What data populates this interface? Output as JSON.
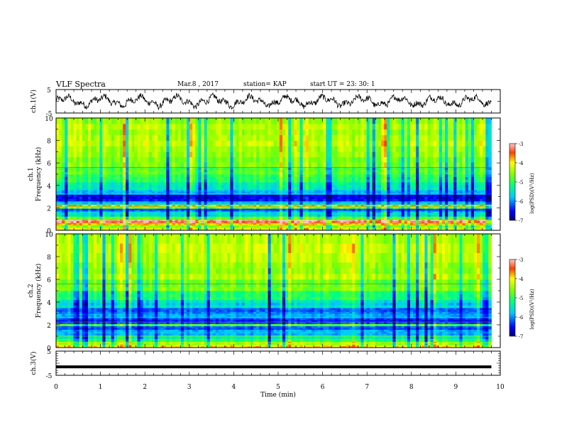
{
  "header": {
    "title": "VLF Spectra",
    "date": "Mar.8 , 2017",
    "station": "station= KAP",
    "start": "start UT =  23: 30: 1"
  },
  "chart_data": [
    {
      "type": "line",
      "ylabel": "ch.1(V)",
      "ylim": [
        -5,
        5
      ],
      "ytick_labels": [
        "-5",
        "5"
      ],
      "xlim": [
        0,
        10
      ],
      "description_of_series": "voltage waveform oscillating roughly between -3.5 and 3.5 V over 0-9.8 min"
    },
    {
      "type": "heatmap",
      "ylabel_line1": "ch.1",
      "ylabel_line2": "Frequency (kHz)",
      "ylim": [
        0,
        10
      ],
      "ytick_labels": [
        "0",
        "2",
        "4",
        "6",
        "8",
        "10"
      ],
      "xlim": [
        0,
        10
      ],
      "data_xmax": 9.8,
      "colorbar": {
        "label": "log(PSD)(V²/Hz)",
        "range": [
          -7,
          -3
        ],
        "tick_labels": [
          "-3",
          "-4",
          "-5",
          "-6",
          "-7"
        ]
      },
      "bands": [
        {
          "f0": 0.0,
          "f1": 0.25,
          "level": 0.7
        },
        {
          "f0": 0.25,
          "f1": 0.45,
          "level": 0.6
        },
        {
          "f0": 0.45,
          "f1": 0.65,
          "level": 0.8
        },
        {
          "f0": 0.65,
          "f1": 0.95,
          "level": 0.95
        },
        {
          "f0": 0.95,
          "f1": 1.25,
          "level": 0.55
        },
        {
          "f0": 1.25,
          "f1": 1.7,
          "level": 0.35
        },
        {
          "f0": 1.7,
          "f1": 1.95,
          "level": 0.2
        },
        {
          "f0": 1.95,
          "f1": 2.15,
          "level": 0.6
        },
        {
          "f0": 2.15,
          "f1": 2.3,
          "level": 0.8
        },
        {
          "f0": 2.3,
          "f1": 2.6,
          "level": 0.3
        },
        {
          "f0": 2.6,
          "f1": 3.2,
          "level": 0.12
        },
        {
          "f0": 3.2,
          "f1": 3.6,
          "level": 0.3
        },
        {
          "f0": 3.6,
          "f1": 4.3,
          "level": 0.38
        },
        {
          "f0": 4.3,
          "f1": 5.0,
          "level": 0.5
        },
        {
          "f0": 5.0,
          "f1": 5.6,
          "level": 0.55
        },
        {
          "f0": 5.6,
          "f1": 7.0,
          "level": 0.62
        },
        {
          "f0": 7.0,
          "f1": 8.5,
          "level": 0.66
        },
        {
          "f0": 8.5,
          "f1": 10.0,
          "level": 0.64
        }
      ]
    },
    {
      "type": "heatmap",
      "ylabel_line1": "ch.2",
      "ylabel_line2": "Frequency (kHz)",
      "ylim": [
        0,
        10
      ],
      "ytick_labels": [
        "0",
        "2",
        "4",
        "6",
        "8",
        "10"
      ],
      "xlim": [
        0,
        10
      ],
      "data_xmax": 9.8,
      "colorbar": {
        "label": "log(PSD)(V²/Hz)",
        "range": [
          -7,
          -3
        ],
        "tick_labels": [
          "-3",
          "-4",
          "-5",
          "-6",
          "-7"
        ]
      },
      "bands": [
        {
          "f0": 0.0,
          "f1": 0.25,
          "level": 0.75
        },
        {
          "f0": 0.25,
          "f1": 0.5,
          "level": 0.65
        },
        {
          "f0": 0.5,
          "f1": 0.8,
          "level": 0.5
        },
        {
          "f0": 0.8,
          "f1": 1.1,
          "level": 0.4
        },
        {
          "f0": 1.1,
          "f1": 1.6,
          "level": 0.28
        },
        {
          "f0": 1.6,
          "f1": 1.9,
          "level": 0.18
        },
        {
          "f0": 1.9,
          "f1": 2.1,
          "level": 0.55
        },
        {
          "f0": 2.1,
          "f1": 2.6,
          "level": 0.15
        },
        {
          "f0": 2.6,
          "f1": 3.0,
          "level": 0.28
        },
        {
          "f0": 3.0,
          "f1": 3.5,
          "level": 0.22
        },
        {
          "f0": 3.5,
          "f1": 4.2,
          "level": 0.35
        },
        {
          "f0": 4.2,
          "f1": 5.0,
          "level": 0.48
        },
        {
          "f0": 5.0,
          "f1": 6.0,
          "level": 0.58
        },
        {
          "f0": 6.0,
          "f1": 7.5,
          "level": 0.64
        },
        {
          "f0": 7.5,
          "f1": 10.0,
          "level": 0.66
        }
      ]
    },
    {
      "type": "line",
      "ylabel": "ch.3(V)",
      "ylim": [
        -5,
        5
      ],
      "ytick_labels": [
        "-5",
        "5"
      ],
      "xlim": [
        0,
        10
      ],
      "xlabel": "Time (min)",
      "xtick_labels": [
        "0",
        "1",
        "2",
        "3",
        "4",
        "5",
        "6",
        "7",
        "8",
        "9",
        "10"
      ],
      "series_constant_value": -1.5,
      "data_xmax": 9.8
    }
  ]
}
